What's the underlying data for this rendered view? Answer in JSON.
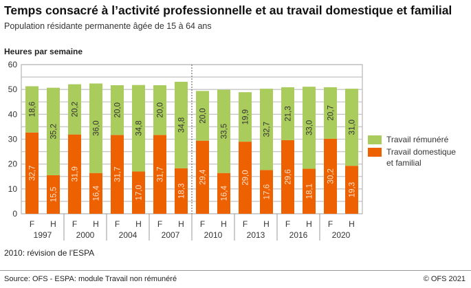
{
  "title": "Temps consacré à l’activité professionnelle et au travail domestique et familial",
  "subtitle": "Population résidante permanente âgée de 15 à 64 ans",
  "note": "2010: révision de l’ESPA",
  "source": "Source: OFS - ESPA: module Travail non rémunéré",
  "copyright": "© OFS 2021",
  "chart_data": {
    "type": "bar",
    "stacked": true,
    "ylabel": "Heures par semaine",
    "ylim": [
      0,
      60
    ],
    "yticks": [
      0,
      10,
      20,
      30,
      40,
      50,
      60
    ],
    "grid": true,
    "legend_position": "right",
    "groups": [
      "1997",
      "2000",
      "2004",
      "2007",
      "2010",
      "2013",
      "2016",
      "2020"
    ],
    "subcategories": [
      "F",
      "H"
    ],
    "break_before_group": "2010",
    "series": [
      {
        "name": "Travail domestique et familial",
        "color": "#ee6100",
        "values": [
          [
            32.7,
            15.5
          ],
          [
            31.9,
            16.4
          ],
          [
            31.7,
            17.0
          ],
          [
            31.7,
            18.3
          ],
          [
            29.4,
            16.4
          ],
          [
            29.0,
            17.6
          ],
          [
            29.6,
            18.1
          ],
          [
            30.2,
            19.3
          ]
        ]
      },
      {
        "name": "Travail rémunéré",
        "color": "#a9cc5c",
        "values": [
          [
            18.6,
            35.2
          ],
          [
            20.2,
            36.0
          ],
          [
            20.0,
            34.8
          ],
          [
            20.0,
            34.8
          ],
          [
            20.0,
            33.5
          ],
          [
            19.9,
            32.7
          ],
          [
            21.3,
            33.0
          ],
          [
            20.7,
            31.0
          ]
        ]
      }
    ],
    "legend_order": [
      "Travail rémunéré",
      "Travail domestique et familial"
    ]
  }
}
